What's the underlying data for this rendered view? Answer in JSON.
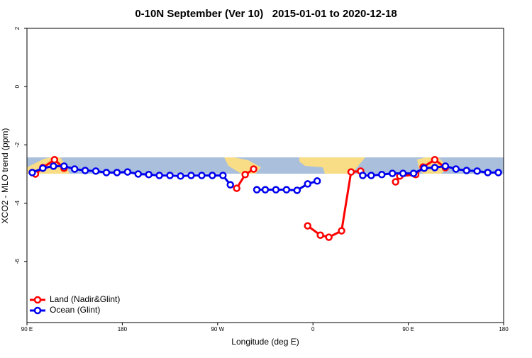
{
  "chart_data": {
    "type": "line",
    "title": "0-10N September (Ver 10)   2015-01-01 to 2020-12-18",
    "x_label": "Longitude (deg E)",
    "y_label": "XCO2 - MLO trend (ppm)",
    "xlim": [
      90,
      540
    ],
    "ylim": [
      -8.1,
      2
    ],
    "xticks": [
      {
        "value": 90,
        "label": "90 E"
      },
      180,
      {
        "value": 270,
        "label": "90 W"
      },
      {
        "value": 360,
        "label": "0"
      },
      {
        "value": 450,
        "label": "90 E"
      },
      {
        "value": 540,
        "label": "180"
      }
    ],
    "yticks": [
      2,
      0,
      -2,
      -4,
      -6
    ],
    "legend": "bottom-left",
    "series": [
      {
        "name": "Land (Nadir&Glint)",
        "color": "#ff0000",
        "x": [
          98,
          105,
          116,
          125,
          null,
          288,
          296,
          304,
          null,
          355,
          367,
          375,
          387,
          396,
          405,
          null,
          438,
          442,
          457,
          464,
          475,
          485
        ],
        "values": [
          -3.0,
          -2.78,
          -2.51,
          -2.8,
          null,
          -3.49,
          -3.02,
          -2.83,
          null,
          -4.78,
          -5.1,
          -5.17,
          -4.95,
          -2.93,
          -2.9,
          null,
          -3.27,
          -3.07,
          -3.02,
          -2.76,
          -2.51,
          -2.78
        ]
      },
      {
        "name": "Ocean (Glint)",
        "color": "#0000ee",
        "x": [
          95,
          105,
          115,
          125,
          135,
          145,
          155,
          165,
          175,
          185,
          195,
          205,
          215,
          225,
          235,
          245,
          255,
          265,
          275,
          282,
          null,
          307,
          315,
          325,
          335,
          345,
          355,
          364,
          null,
          407,
          415,
          425,
          435,
          445,
          455,
          465,
          475,
          485,
          495,
          505,
          515,
          525,
          535
        ],
        "values": [
          -2.95,
          -2.8,
          -2.73,
          -2.73,
          -2.83,
          -2.88,
          -2.9,
          -2.95,
          -2.95,
          -2.93,
          -3.0,
          -3.02,
          -3.05,
          -3.05,
          -3.07,
          -3.05,
          -3.05,
          -3.05,
          -3.05,
          -3.37,
          null,
          -3.54,
          -3.54,
          -3.54,
          -3.54,
          -3.56,
          -3.34,
          -3.24,
          null,
          -3.05,
          -3.05,
          -3.02,
          -2.98,
          -2.98,
          -2.98,
          -2.8,
          -2.78,
          -2.73,
          -2.83,
          -2.88,
          -2.9,
          -2.95,
          -2.95
        ]
      }
    ]
  }
}
